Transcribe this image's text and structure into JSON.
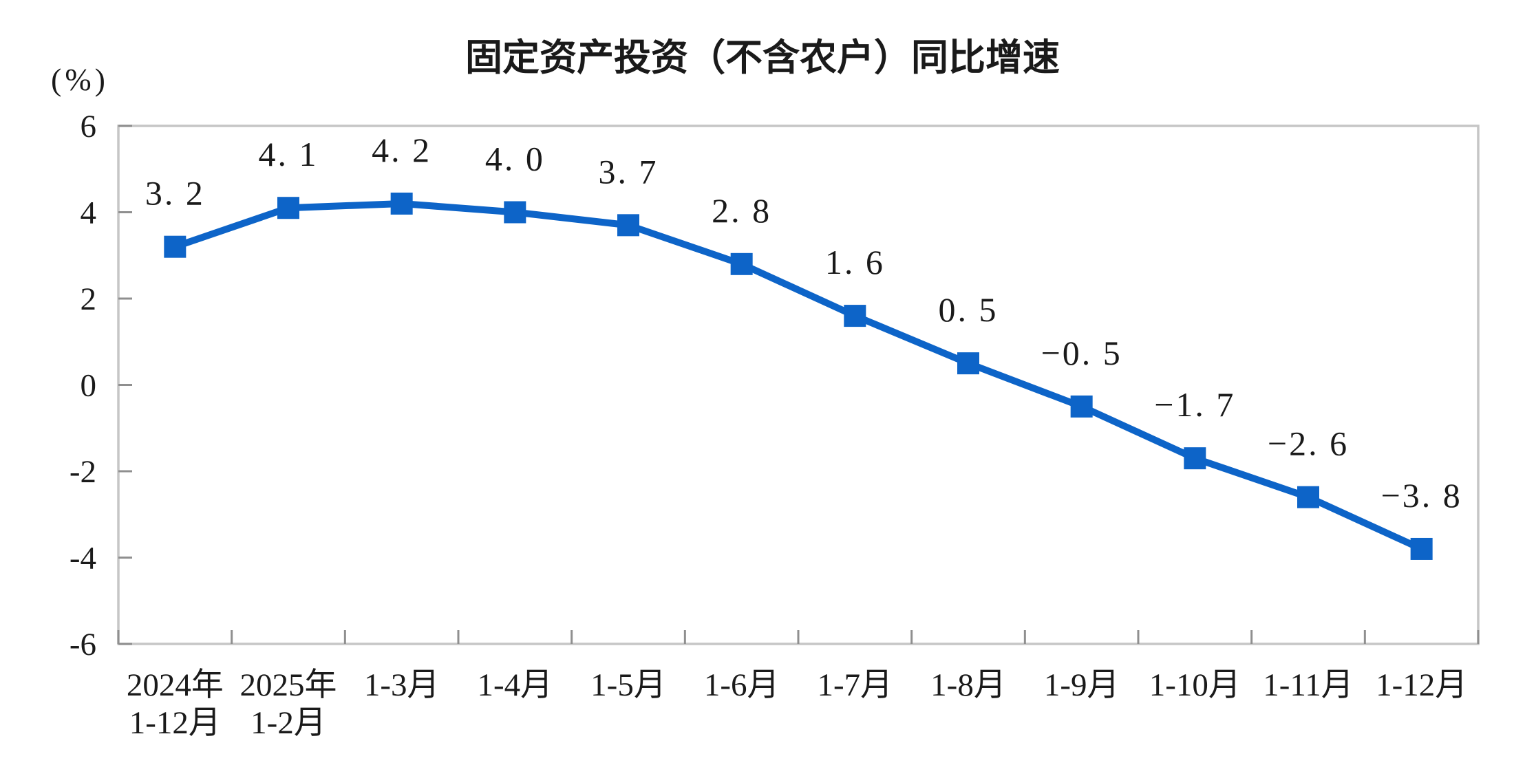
{
  "chart_data": {
    "type": "line",
    "title": "固定资产投资（不含农户）同比增速",
    "ylabel": "(%)",
    "categories": [
      [
        "2024年",
        "1-12月"
      ],
      [
        "2025年",
        "1-2月"
      ],
      [
        "1-3月"
      ],
      [
        "1-4月"
      ],
      [
        "1-5月"
      ],
      [
        "1-6月"
      ],
      [
        "1-7月"
      ],
      [
        "1-8月"
      ],
      [
        "1-9月"
      ],
      [
        "1-10月"
      ],
      [
        "1-11月"
      ],
      [
        "1-12月"
      ]
    ],
    "values": [
      3.2,
      4.1,
      4.2,
      4.0,
      3.7,
      2.8,
      1.6,
      0.5,
      -0.5,
      -1.7,
      -2.6,
      -3.8
    ],
    "point_labels": [
      "3. 2",
      "4. 1",
      "4. 2",
      "4. 0",
      "3. 7",
      "2. 8",
      "1. 6",
      "0. 5",
      "−0. 5",
      "−1. 7",
      "−2. 6",
      "−3. 8"
    ],
    "ylim": [
      -6,
      6
    ],
    "yticks": [
      6,
      4,
      2,
      0,
      -2,
      -4,
      -6
    ],
    "grid": false,
    "legend": "none",
    "marker_shape": "square",
    "colors": {
      "line": "#0D64C8",
      "marker": "#0D64C8",
      "border": "#C6C6C6",
      "tick": "#8F8F8F",
      "text": "#1A1A1A",
      "background": "#FFFFFF"
    }
  }
}
